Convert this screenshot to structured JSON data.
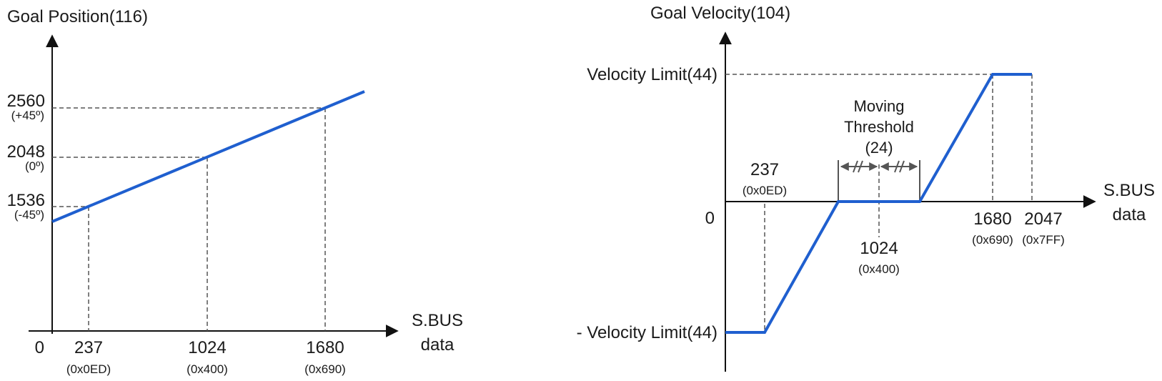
{
  "left_chart": {
    "title": "Goal Position(116)",
    "origin": "0",
    "x_axis_label_line1": "S.BUS",
    "x_axis_label_line2": "data",
    "y_ticks": [
      {
        "value": "2560",
        "sub": "(+45º)"
      },
      {
        "value": "2048",
        "sub": "(0º)"
      },
      {
        "value": "1536",
        "sub": "(-45º)"
      }
    ],
    "x_ticks": [
      {
        "value": "237",
        "sub": "(0x0ED)"
      },
      {
        "value": "1024",
        "sub": "(0x400)"
      },
      {
        "value": "1680",
        "sub": "(0x690)"
      }
    ]
  },
  "right_chart": {
    "title": "Goal Velocity(104)",
    "origin": "0",
    "x_axis_label_line1": "S.BUS",
    "x_axis_label_line2": "data",
    "velocity_limit_label": "Velocity Limit(44)",
    "neg_velocity_limit_label": "- Velocity Limit(44)",
    "threshold_line1": "Moving",
    "threshold_line2": "Threshold",
    "threshold_line3": "(24)",
    "x_ticks": [
      {
        "value": "237",
        "sub": "(0x0ED)"
      },
      {
        "value": "1024",
        "sub": "(0x400)"
      },
      {
        "value": "1680",
        "sub": "(0x690)"
      },
      {
        "value": "2047",
        "sub": "(0x7FF)"
      }
    ]
  },
  "colors": {
    "curve": "#1f5fcf",
    "axis": "#111111",
    "guide": "#555555"
  }
}
